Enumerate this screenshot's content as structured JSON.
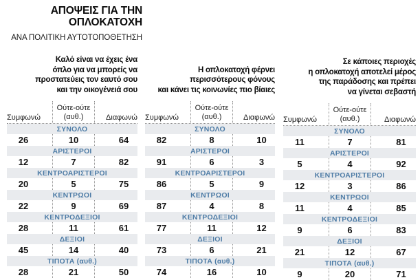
{
  "header": {
    "title_lines": [
      "ΑΠΟΨΕΙΣ ΓΙΑ ΤΗΝ",
      "ΟΠΛΟΚΑΤΟΧΗ"
    ],
    "subtitle": "ΑΝΑ ΠΟΛΙΤΙΚΗ ΑΥΤΟΤΟΠΟΘΕΤΗΣΗ"
  },
  "response_header": {
    "agree": "Συμφωνώ",
    "neither_line1": "Ούτε-ούτε",
    "neither_line2": "(αυθ.)",
    "disagree": "Διαφωνώ"
  },
  "colors": {
    "band_background": "#e9ebee",
    "group_label": "#4e7ca6",
    "number_text": "#121212",
    "dotted_line": "#8f8f8f"
  },
  "chart_data": {
    "type": "table",
    "title": "ΑΠΟΨΕΙΣ ΓΙΑ ΤΗΝ ΟΠΛΟΚΑΤΟΧΗ",
    "subtitle": "ΑΝΑ ΠΟΛΙΤΙΚΗ ΑΥΤΟΤΟΠΟΘΕΤΗΣΗ",
    "response_options": [
      "Συμφωνώ",
      "Ούτε-ούτε (αυθ.)",
      "Διαφωνώ"
    ],
    "groups": [
      "ΣΥΝΟΛΟ",
      "ΑΡΙΣΤΕΡΟΙ",
      "ΚΕΝΤΡΟΑΡΙΣΤΕΡΟΙ",
      "ΚΕΝΤΡΩΟΙ",
      "ΚΕΝΤΡΟΔΕΞΙΟΙ",
      "ΔΕΞΙΟΙ",
      "ΤΙΠΟΤΑ (αυθ.)"
    ],
    "panels": [
      {
        "statement": "Καλό είναι να έχεις ένα όπλο για να μπορείς να προστατεύεις τον εαυτό σου και την οικογένειά σου",
        "statement_lines": [
          "Καλό είναι να έχεις ένα",
          "όπλο για να μπορείς να",
          "προστατεύεις τον εαυτό σου",
          "και την οικογένειά σου"
        ],
        "rows": [
          [
            26,
            10,
            64
          ],
          [
            12,
            7,
            82
          ],
          [
            20,
            5,
            75
          ],
          [
            22,
            9,
            69
          ],
          [
            28,
            11,
            61
          ],
          [
            45,
            14,
            40
          ],
          [
            28,
            21,
            50
          ]
        ]
      },
      {
        "statement": "Η οπλοκατοχή φέρνει περισσότερους φόνους και κάνει τις κοινωνίες πιο βίαιες",
        "statement_lines": [
          "Η οπλοκατοχή φέρνει",
          "περισσότερους φόνους",
          "και κάνει τις κοινωνίες πιο βίαιες"
        ],
        "rows": [
          [
            82,
            8,
            10
          ],
          [
            91,
            6,
            3
          ],
          [
            86,
            5,
            9
          ],
          [
            87,
            4,
            8
          ],
          [
            77,
            11,
            12
          ],
          [
            73,
            6,
            21
          ],
          [
            74,
            16,
            10
          ]
        ]
      },
      {
        "statement": "Σε κάποιες περιοχές η οπλοκατοχή αποτελεί μέρος της παράδοσης και πρέπει να γίνεται σεβαστή",
        "statement_lines": [
          "Σε κάποιες περιοχές",
          "η οπλοκατοχή αποτελεί μέρος",
          "της παράδοσης και πρέπει",
          "να γίνεται σεβαστή"
        ],
        "rows": [
          [
            11,
            7,
            81
          ],
          [
            5,
            4,
            92
          ],
          [
            12,
            3,
            86
          ],
          [
            11,
            4,
            85
          ],
          [
            9,
            6,
            83
          ],
          [
            21,
            12,
            67
          ],
          [
            9,
            20,
            71
          ]
        ]
      }
    ]
  }
}
